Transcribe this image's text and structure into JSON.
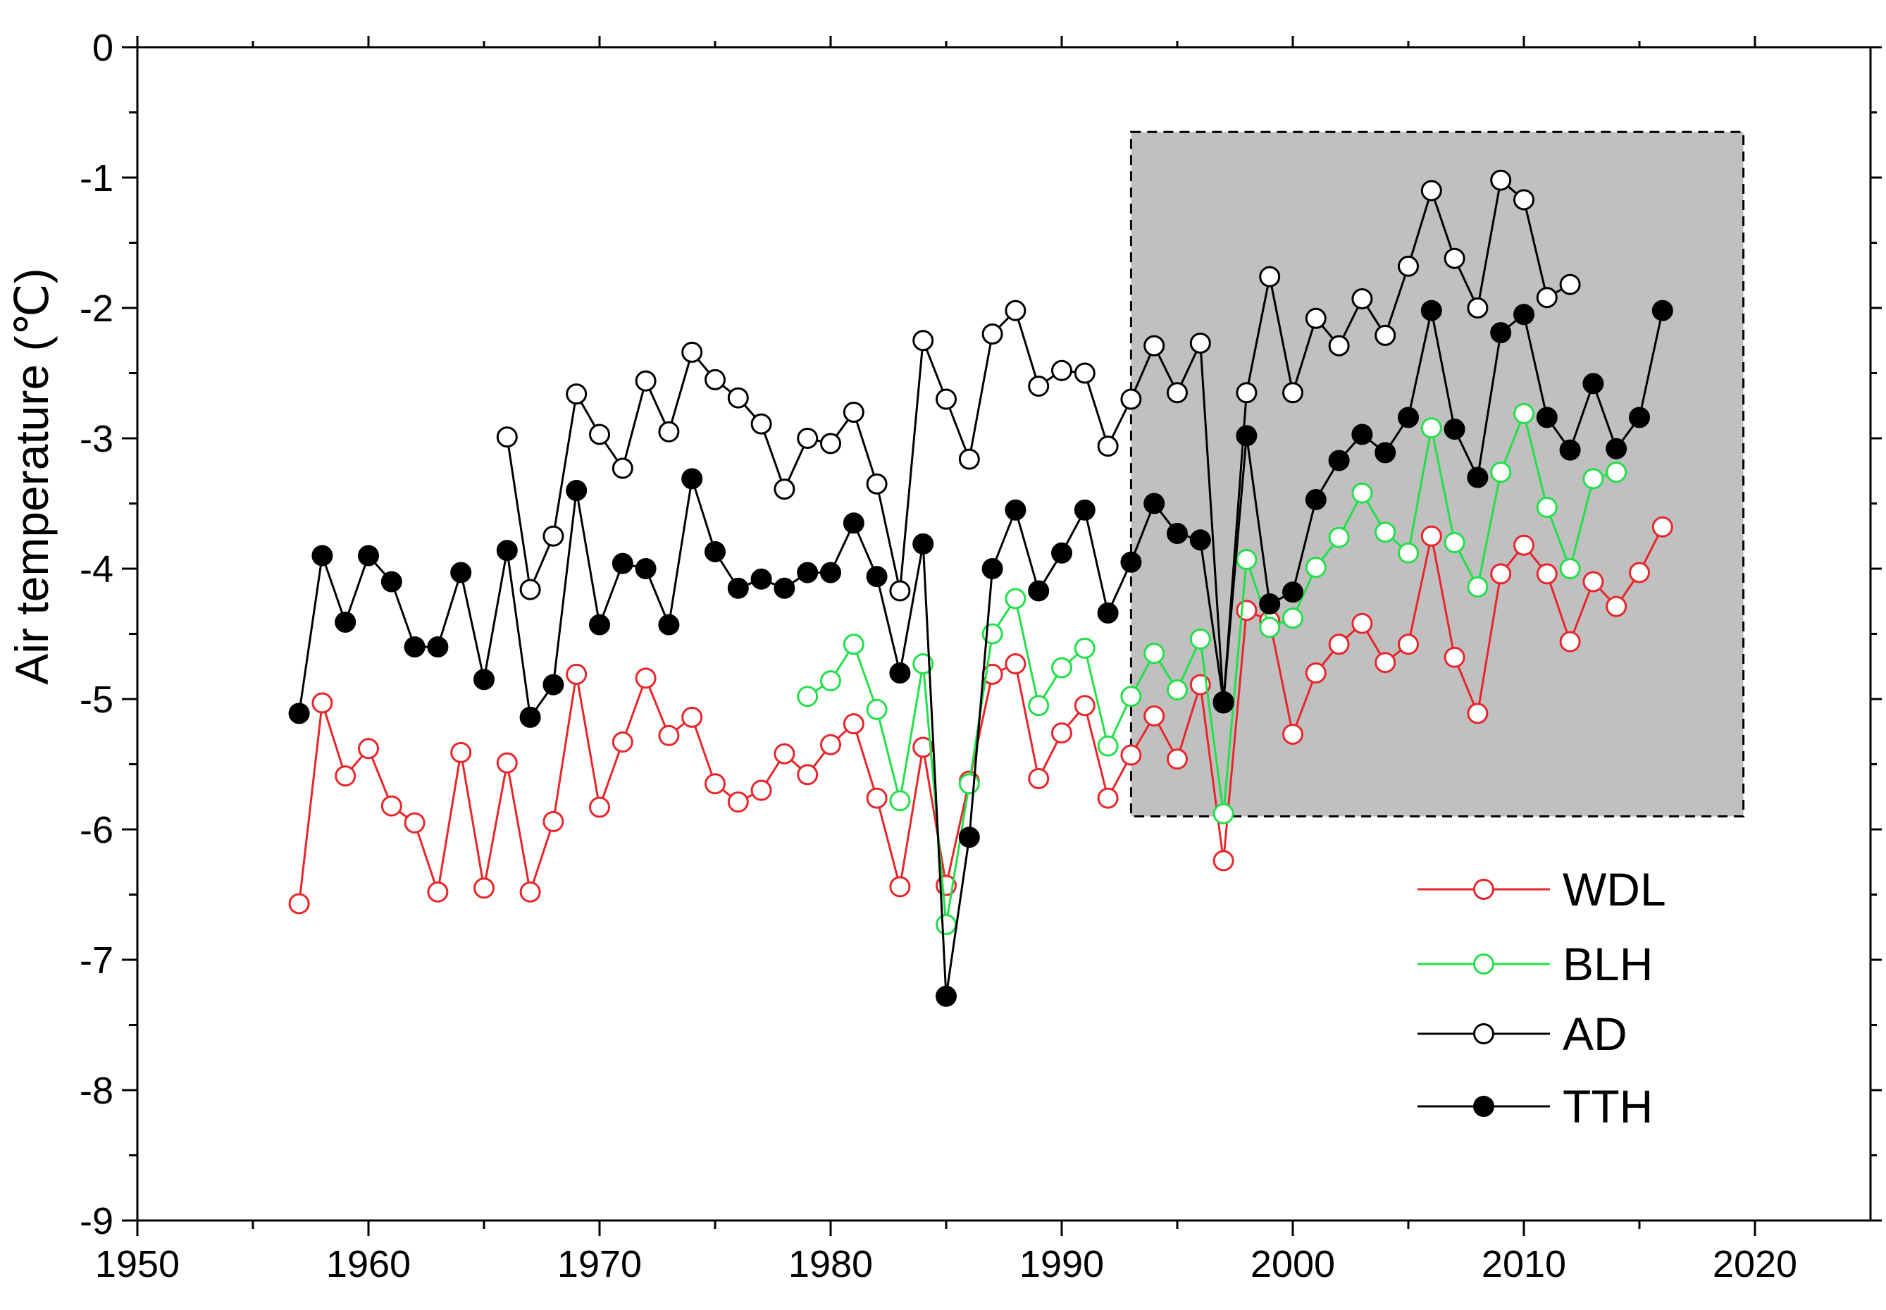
{
  "chart_data": {
    "type": "line",
    "title": "",
    "xlabel": "",
    "ylabel": "Air temperature (℃)",
    "xlim": [
      1950,
      2025
    ],
    "ylim": [
      -9,
      0
    ],
    "x_major_ticks": [
      1950,
      1960,
      1970,
      1980,
      1990,
      2000,
      2010,
      2020
    ],
    "x_tick_labels": [
      "1950",
      "1960",
      "1970",
      "1980",
      "1990",
      "2000",
      "2010",
      "2020"
    ],
    "y_major_ticks": [
      0,
      -1,
      -2,
      -3,
      -4,
      -5,
      -6,
      -7,
      -8,
      -9
    ],
    "y_tick_labels": [
      "0",
      "-1",
      "-2",
      "-3",
      "-4",
      "-5",
      "-6",
      "-7",
      "-8",
      "-9"
    ],
    "grid": false,
    "highlight_region": {
      "x_start": 1993,
      "x_end": 2019.5,
      "y_start": -5.9,
      "y_end": -0.65,
      "fill": "#c0c0c0",
      "border": "dashed"
    },
    "legend": {
      "placement": "bottom-right"
    },
    "series": [
      {
        "name": "WDL",
        "color": "#e8262a",
        "marker": "open-circle",
        "x": [
          1957,
          1958,
          1959,
          1960,
          1961,
          1962,
          1963,
          1964,
          1965,
          1966,
          1967,
          1968,
          1969,
          1970,
          1971,
          1972,
          1973,
          1974,
          1975,
          1976,
          1977,
          1978,
          1979,
          1980,
          1981,
          1982,
          1983,
          1984,
          1985,
          1986,
          1987,
          1988,
          1989,
          1990,
          1991,
          1992,
          1993,
          1994,
          1995,
          1996,
          1997,
          1998,
          1999,
          2000,
          2001,
          2002,
          2003,
          2004,
          2005,
          2006,
          2007,
          2008,
          2009,
          2010,
          2011,
          2012,
          2013,
          2014,
          2015,
          2016
        ],
        "values": [
          -6.57,
          -5.03,
          -5.59,
          -5.38,
          -5.82,
          -5.95,
          -6.48,
          -5.41,
          -6.45,
          -5.49,
          -6.48,
          -5.94,
          -4.81,
          -5.83,
          -5.33,
          -4.84,
          -5.28,
          -5.14,
          -5.65,
          -5.79,
          -5.7,
          -5.42,
          -5.58,
          -5.35,
          -5.19,
          -5.76,
          -6.44,
          -5.37,
          -6.43,
          -5.63,
          -4.81,
          -4.73,
          -5.61,
          -5.26,
          -5.05,
          -5.76,
          -5.43,
          -5.13,
          -5.46,
          -4.89,
          -6.24,
          -4.32,
          -4.4,
          -5.27,
          -4.8,
          -4.58,
          -4.42,
          -4.72,
          -4.58,
          -3.75,
          -4.68,
          -5.11,
          -4.04,
          -3.82,
          -4.04,
          -4.56,
          -4.1,
          -4.29,
          -4.03,
          -3.68
        ]
      },
      {
        "name": "BLH",
        "color": "#22e04a",
        "marker": "open-circle",
        "x": [
          1979,
          1980,
          1981,
          1982,
          1983,
          1984,
          1985,
          1986,
          1987,
          1988,
          1989,
          1990,
          1991,
          1992,
          1993,
          1994,
          1995,
          1996,
          1997,
          1998,
          1999,
          2000,
          2001,
          2002,
          2003,
          2004,
          2005,
          2006,
          2007,
          2008,
          2009,
          2010,
          2011,
          2012,
          2013,
          2014
        ],
        "values": [
          -4.98,
          -4.86,
          -4.58,
          -5.08,
          -5.78,
          -4.73,
          -6.73,
          -5.65,
          -4.5,
          -4.23,
          -5.05,
          -4.76,
          -4.61,
          -5.36,
          -4.98,
          -4.65,
          -4.93,
          -4.54,
          -5.88,
          -3.93,
          -4.45,
          -4.38,
          -3.99,
          -3.76,
          -3.42,
          -3.72,
          -3.88,
          -2.92,
          -3.8,
          -4.14,
          -3.26,
          -2.81,
          -3.53,
          -4.0,
          -3.31,
          -3.26
        ]
      },
      {
        "name": "AD",
        "color": "#000000",
        "marker": "open-circle",
        "x": [
          1966,
          1967,
          1968,
          1969,
          1970,
          1971,
          1972,
          1973,
          1974,
          1975,
          1976,
          1977,
          1978,
          1979,
          1980,
          1981,
          1982,
          1983,
          1984,
          1985,
          1986,
          1987,
          1988,
          1989,
          1990,
          1991,
          1992,
          1993,
          1994,
          1995,
          1996,
          1997,
          1998,
          1999,
          2000,
          2001,
          2002,
          2003,
          2004,
          2005,
          2006,
          2007,
          2008,
          2009,
          2010,
          2011,
          2012
        ],
        "values": [
          -2.99,
          -4.16,
          -3.75,
          -2.66,
          -2.97,
          -3.23,
          -2.56,
          -2.95,
          -2.34,
          -2.55,
          -2.69,
          -2.89,
          -3.39,
          -3.0,
          -3.04,
          -2.8,
          -3.35,
          -4.17,
          -2.25,
          -2.7,
          -3.16,
          -2.2,
          -2.02,
          -2.6,
          -2.48,
          -2.5,
          -3.06,
          -2.7,
          -2.29,
          -2.65,
          -2.27,
          -5.03,
          -2.65,
          -1.76,
          -2.65,
          -2.08,
          -2.29,
          -1.93,
          -2.21,
          -1.68,
          -1.1,
          -1.62,
          -2.0,
          -1.02,
          -1.17,
          -1.92,
          -1.82
        ]
      },
      {
        "name": "TTH",
        "color": "#000000",
        "marker": "filled-circle",
        "x": [
          1957,
          1958,
          1959,
          1960,
          1961,
          1962,
          1963,
          1964,
          1965,
          1966,
          1967,
          1968,
          1969,
          1970,
          1971,
          1972,
          1973,
          1974,
          1975,
          1976,
          1977,
          1978,
          1979,
          1980,
          1981,
          1982,
          1983,
          1984,
          1985,
          1986,
          1987,
          1988,
          1989,
          1990,
          1991,
          1992,
          1993,
          1994,
          1995,
          1996,
          1997,
          1998,
          1999,
          2000,
          2001,
          2002,
          2003,
          2004,
          2005,
          2006,
          2007,
          2008,
          2009,
          2010,
          2011,
          2012,
          2013,
          2014,
          2015,
          2016
        ],
        "values": [
          -5.11,
          -3.9,
          -4.41,
          -3.9,
          -4.1,
          -4.6,
          -4.6,
          -4.03,
          -4.85,
          -3.86,
          -5.14,
          -4.89,
          -3.4,
          -4.43,
          -3.96,
          -4.0,
          -4.43,
          -3.31,
          -3.87,
          -4.15,
          -4.08,
          -4.15,
          -4.03,
          -4.03,
          -3.65,
          -4.06,
          -4.8,
          -3.81,
          -7.28,
          -6.06,
          -4.0,
          -3.55,
          -4.17,
          -3.88,
          -3.55,
          -4.34,
          -3.95,
          -3.5,
          -3.73,
          -3.78,
          -5.02,
          -2.98,
          -4.27,
          -4.18,
          -3.47,
          -3.17,
          -2.97,
          -3.11,
          -2.84,
          -2.02,
          -2.93,
          -3.3,
          -2.19,
          -2.05,
          -2.84,
          -3.09,
          -2.58,
          -3.08,
          -2.84,
          -2.02
        ]
      }
    ]
  }
}
